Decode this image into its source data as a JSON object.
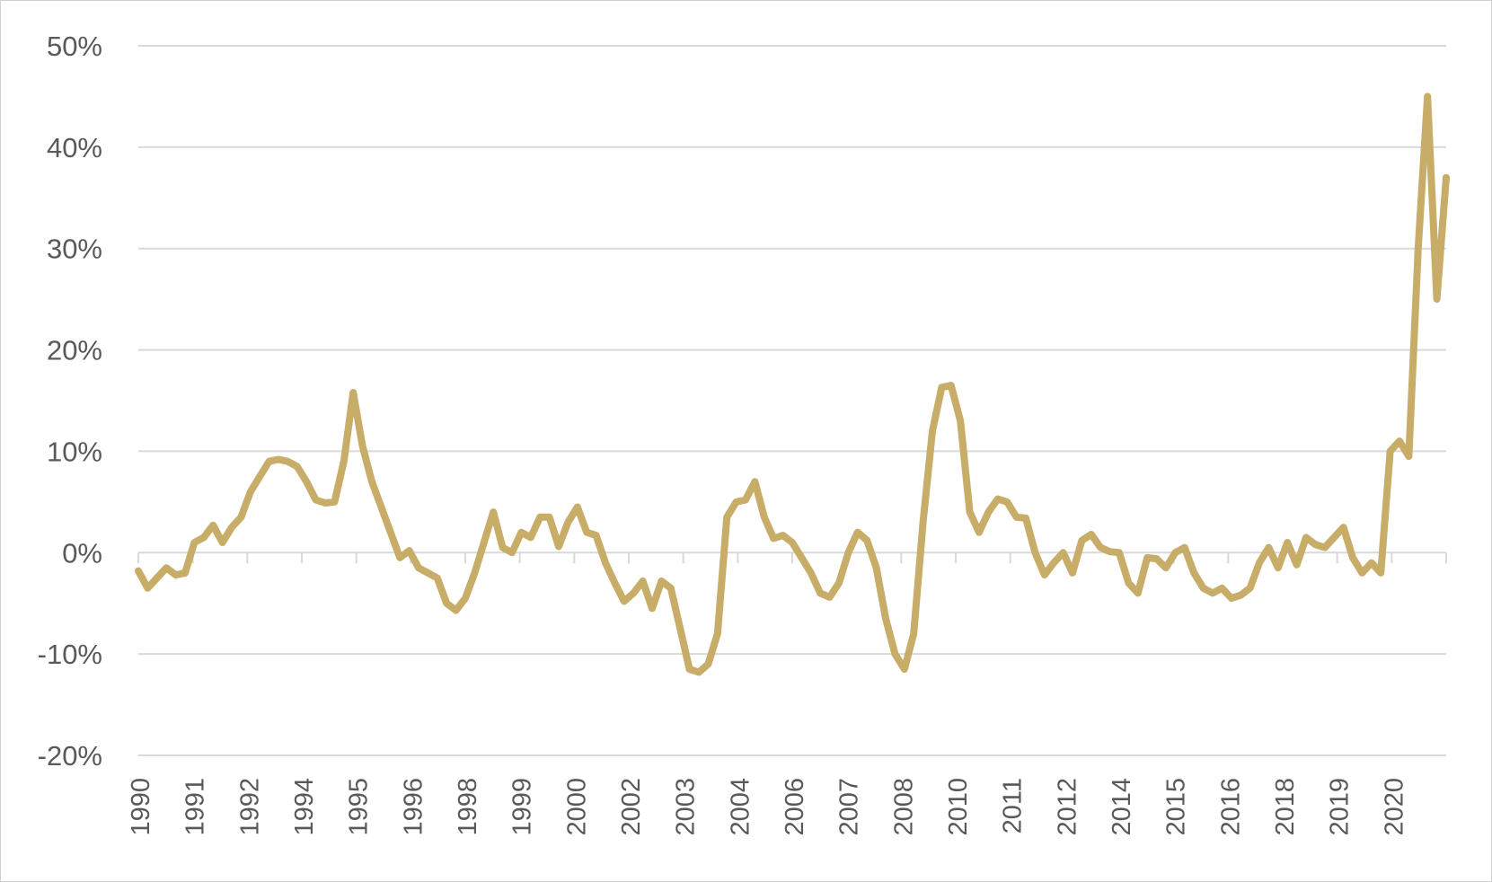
{
  "chart_data": {
    "type": "line",
    "title": "",
    "xlabel": "",
    "ylabel": "",
    "grid": true,
    "legend": "none",
    "ylim": [
      -0.2,
      0.5
    ],
    "y_ticks": [
      {
        "value": 0.5,
        "label": "50%"
      },
      {
        "value": 0.4,
        "label": "40%"
      },
      {
        "value": 0.3,
        "label": "30%"
      },
      {
        "value": 0.2,
        "label": "20%"
      },
      {
        "value": 0.1,
        "label": "10%"
      },
      {
        "value": 0.0,
        "label": "0%"
      },
      {
        "value": -0.1,
        "label": "-10%"
      },
      {
        "value": -0.2,
        "label": "-20%"
      }
    ],
    "x_tick_labels": [
      "1990",
      "1991",
      "1992",
      "1994",
      "1995",
      "1996",
      "1998",
      "1999",
      "2000",
      "2002",
      "2003",
      "2004",
      "2006",
      "2007",
      "2008",
      "2010",
      "2011",
      "2012",
      "2014",
      "2015",
      "2016",
      "2018",
      "2019",
      "2020"
    ],
    "colors": {
      "series": "#c8ad69",
      "grid": "#d9d9d9",
      "text": "#595959"
    },
    "series": [
      {
        "x_start": 1990.0,
        "x_step": 0.25,
        "values": [
          -0.018,
          -0.035,
          -0.025,
          -0.015,
          -0.022,
          -0.02,
          0.01,
          0.015,
          0.027,
          0.01,
          0.025,
          0.035,
          0.06,
          0.075,
          0.09,
          0.092,
          0.09,
          0.085,
          0.07,
          0.052,
          0.049,
          0.05,
          0.09,
          0.158,
          0.105,
          0.07,
          0.045,
          0.02,
          -0.005,
          0.002,
          -0.015,
          -0.02,
          -0.025,
          -0.05,
          -0.057,
          -0.045,
          -0.02,
          0.01,
          0.04,
          0.005,
          0.0,
          0.02,
          0.015,
          0.035,
          0.035,
          0.006,
          0.03,
          0.045,
          0.02,
          0.017,
          -0.01,
          -0.03,
          -0.048,
          -0.04,
          -0.028,
          -0.055,
          -0.028,
          -0.035,
          -0.075,
          -0.115,
          -0.118,
          -0.11,
          -0.08,
          0.035,
          0.05,
          0.052,
          0.07,
          0.035,
          0.014,
          0.017,
          0.01,
          -0.005,
          -0.02,
          -0.04,
          -0.044,
          -0.03,
          0.0,
          0.02,
          0.012,
          -0.015,
          -0.065,
          -0.1,
          -0.115,
          -0.08,
          0.03,
          0.12,
          0.163,
          0.165,
          0.13,
          0.04,
          0.02,
          0.04,
          0.053,
          0.05,
          0.035,
          0.034,
          0.0,
          -0.022,
          -0.01,
          0.0,
          -0.02,
          0.012,
          0.018,
          0.005,
          0.001,
          0.0,
          -0.03,
          -0.04,
          -0.005,
          -0.006,
          -0.015,
          0.0,
          0.005,
          -0.02,
          -0.035,
          -0.04,
          -0.035,
          -0.045,
          -0.042,
          -0.035,
          -0.01,
          0.005,
          -0.015,
          0.01,
          -0.012,
          0.015,
          0.008,
          0.005,
          0.015,
          0.025,
          -0.005,
          -0.02,
          -0.01,
          -0.02,
          0.1,
          0.11,
          0.095,
          0.3,
          0.45,
          0.25,
          0.37
        ]
      }
    ]
  }
}
